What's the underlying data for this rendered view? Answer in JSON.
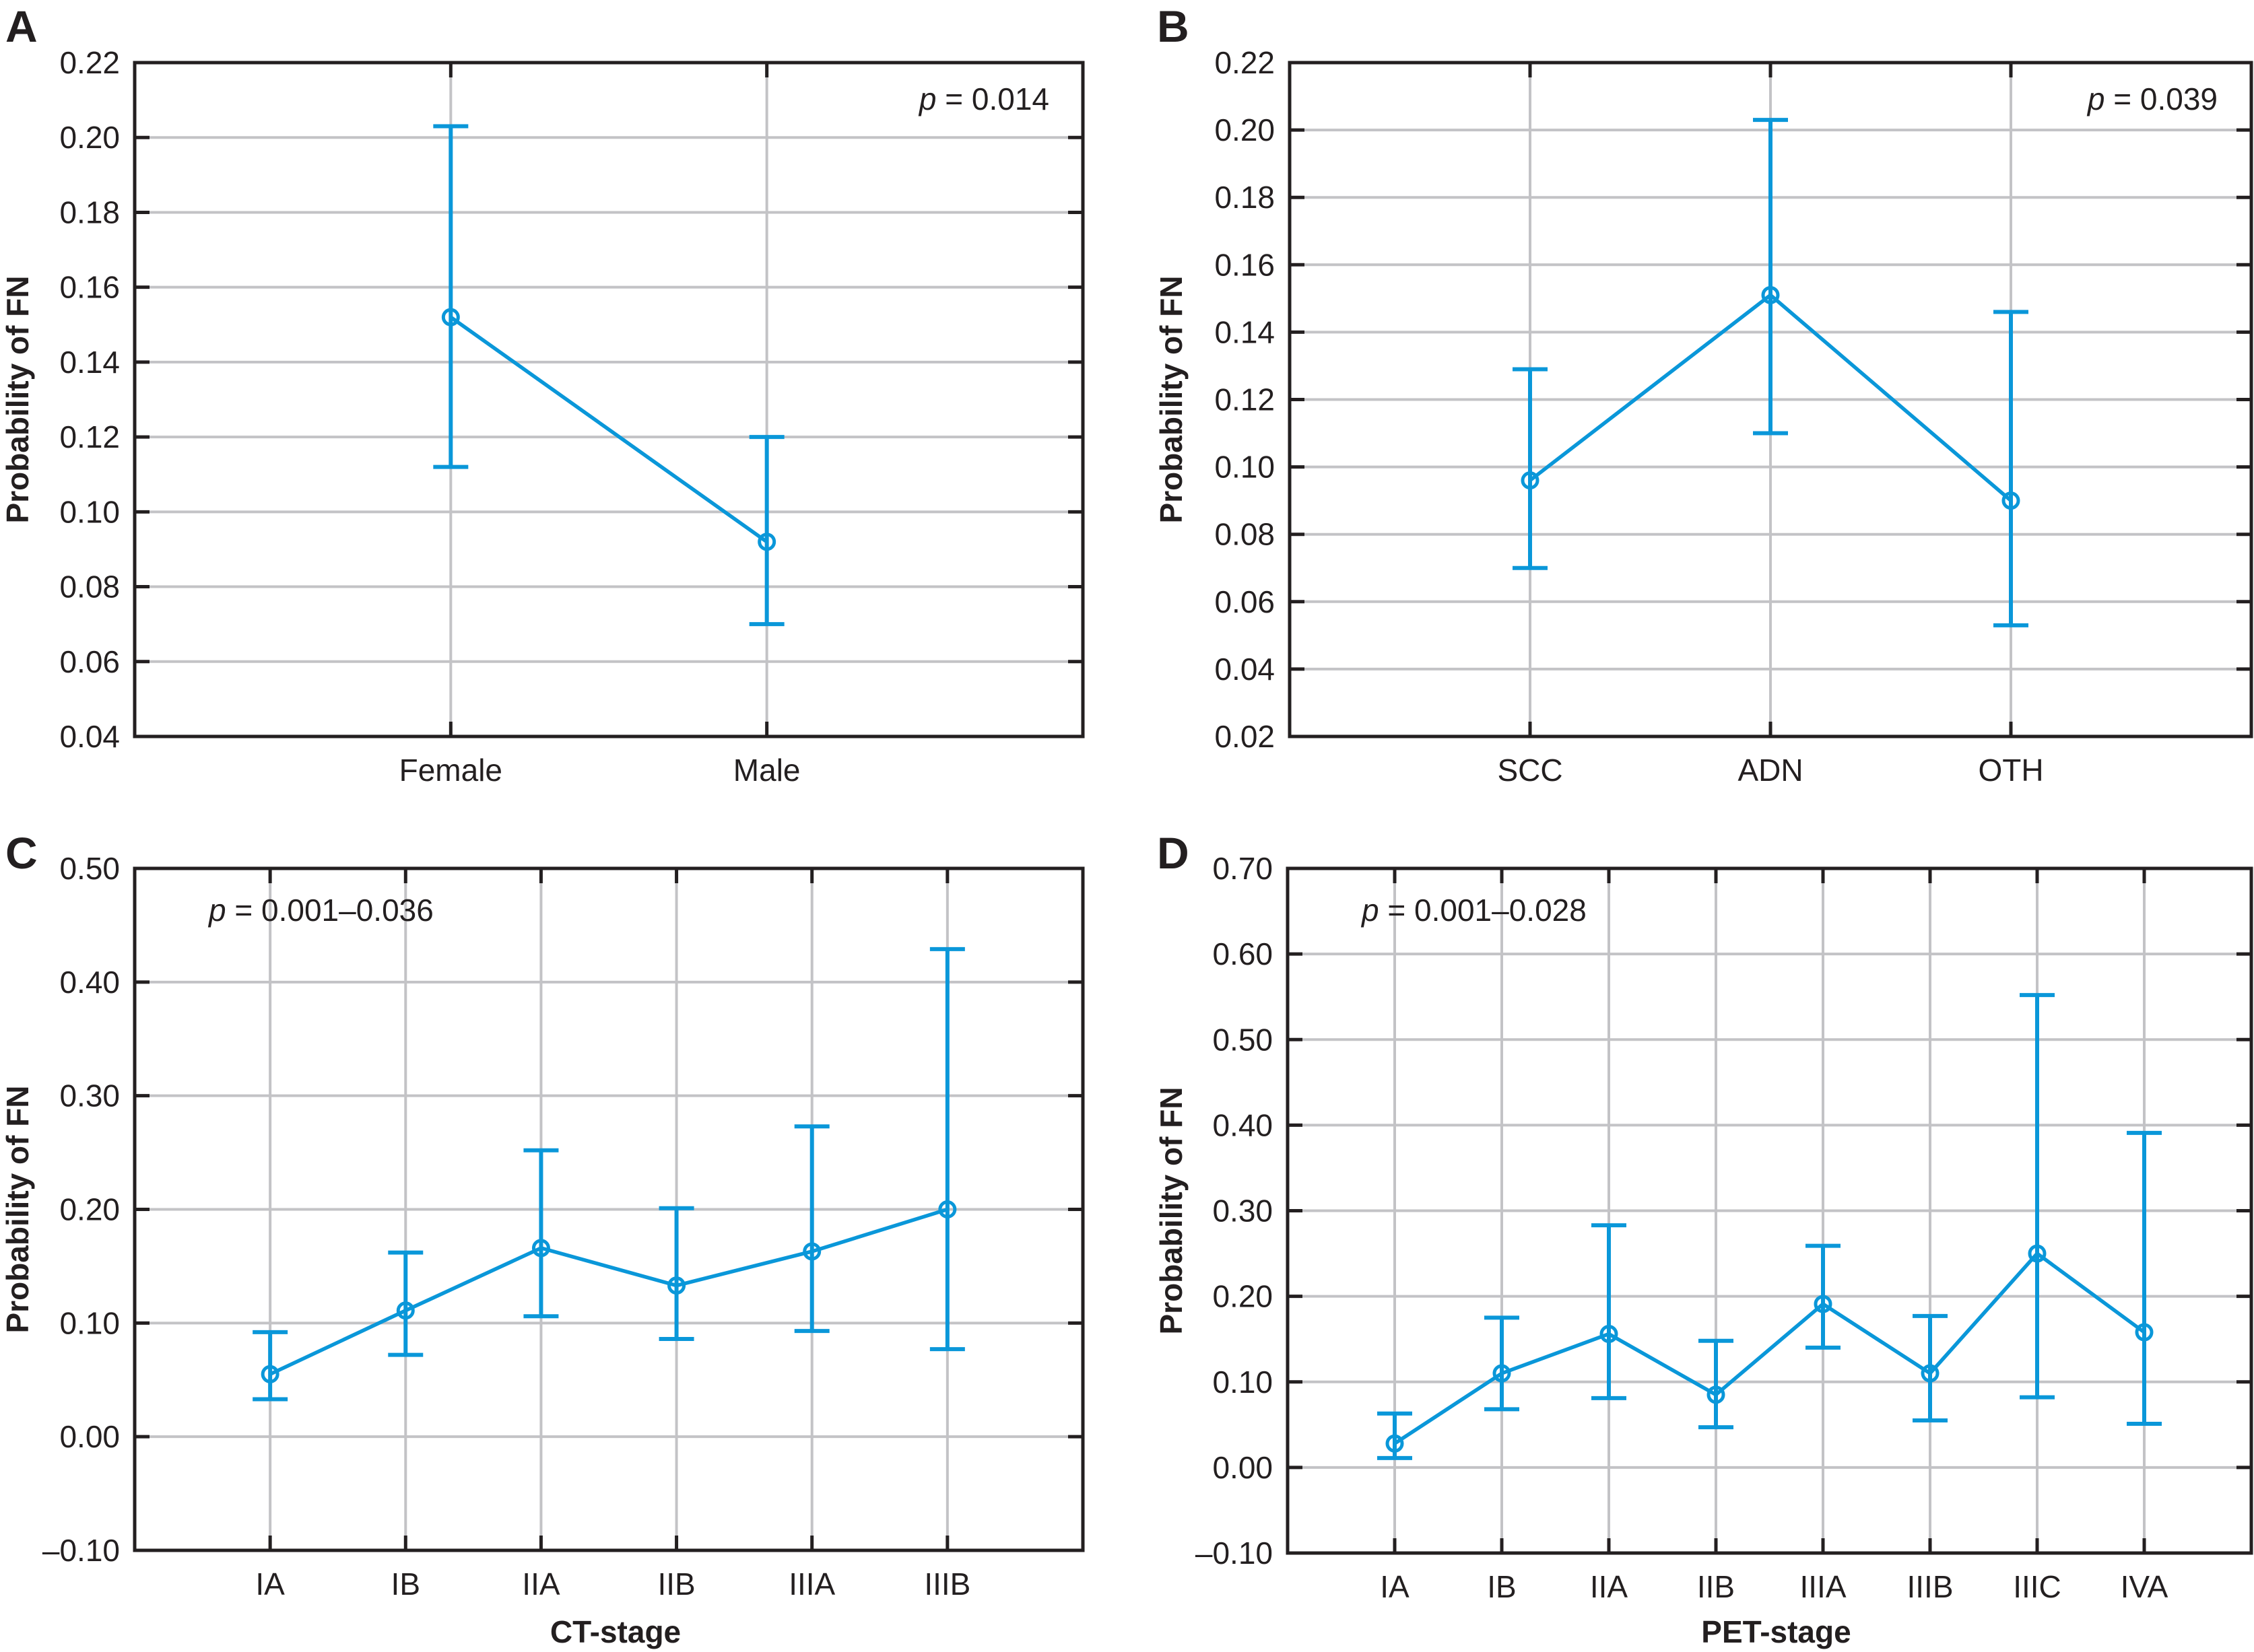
{
  "figure": {
    "series_color": "#0a97d9",
    "grid_color": "#c3c3c6",
    "axis_color": "#231f20"
  },
  "chart_data": [
    {
      "panel": "A",
      "type": "line",
      "title": "",
      "annotation": {
        "italic": "p",
        "text": " = 0.014"
      },
      "xlabel": "",
      "ylabel": "Probability of FN",
      "ylim": [
        0.04,
        0.22
      ],
      "yticks": [
        0.04,
        0.06,
        0.08,
        0.1,
        0.12,
        0.14,
        0.16,
        0.18,
        0.2,
        0.22
      ],
      "ytick_labels": [
        "0.04",
        "0.06",
        "0.08",
        "0.10",
        "0.12",
        "0.14",
        "0.16",
        "0.18",
        "0.20",
        "0.22"
      ],
      "grid": true,
      "annotation_position": "top-right",
      "categories": [
        "Female",
        "Male"
      ],
      "values": [
        0.152,
        0.092
      ],
      "ci_low": [
        0.112,
        0.07
      ],
      "ci_high": [
        0.203,
        0.12
      ]
    },
    {
      "panel": "B",
      "type": "line",
      "title": "",
      "annotation": {
        "italic": "p",
        "text": " = 0.039"
      },
      "xlabel": "",
      "ylabel": "Probability of FN",
      "ylim": [
        0.02,
        0.22
      ],
      "yticks": [
        0.02,
        0.04,
        0.06,
        0.08,
        0.1,
        0.12,
        0.14,
        0.16,
        0.18,
        0.2,
        0.22
      ],
      "ytick_labels": [
        "0.02",
        "0.04",
        "0.06",
        "0.08",
        "0.10",
        "0.12",
        "0.14",
        "0.16",
        "0.18",
        "0.20",
        "0.22"
      ],
      "grid": true,
      "annotation_position": "top-right",
      "categories": [
        "SCC",
        "ADN",
        "OTH"
      ],
      "values": [
        0.096,
        0.151,
        0.09
      ],
      "ci_low": [
        0.07,
        0.11,
        0.053
      ],
      "ci_high": [
        0.129,
        0.203,
        0.146
      ]
    },
    {
      "panel": "C",
      "type": "line",
      "title": "",
      "annotation": {
        "italic": "p",
        "text": " = 0.001–0.036"
      },
      "xlabel": "CT-stage",
      "ylabel": "Probability of FN",
      "ylim": [
        -0.1,
        0.5
      ],
      "yticks": [
        -0.1,
        0.0,
        0.1,
        0.2,
        0.3,
        0.4,
        0.5
      ],
      "ytick_labels": [
        "–0.10",
        "0.00",
        "0.10",
        "0.20",
        "0.30",
        "0.40",
        "0.50"
      ],
      "grid": true,
      "annotation_position": "top-left",
      "categories": [
        "IA",
        "IB",
        "IIA",
        "IIB",
        "IIIA",
        "IIIB"
      ],
      "values": [
        0.055,
        0.111,
        0.166,
        0.133,
        0.163,
        0.2
      ],
      "ci_low": [
        0.033,
        0.072,
        0.106,
        0.086,
        0.093,
        0.077
      ],
      "ci_high": [
        0.092,
        0.162,
        0.252,
        0.201,
        0.273,
        0.429
      ]
    },
    {
      "panel": "D",
      "type": "line",
      "title": "",
      "annotation": {
        "italic": "p",
        "text": " = 0.001–0.028"
      },
      "xlabel": "PET-stage",
      "ylabel": "Probability of FN",
      "ylim": [
        -0.1,
        0.7
      ],
      "yticks": [
        -0.1,
        0.0,
        0.1,
        0.2,
        0.3,
        0.4,
        0.5,
        0.6,
        0.7
      ],
      "ytick_labels": [
        "–0.10",
        "0.00",
        "0.10",
        "0.20",
        "0.30",
        "0.40",
        "0.50",
        "0.60",
        "0.70"
      ],
      "grid": true,
      "annotation_position": "top-left",
      "categories": [
        "IA",
        "IB",
        "IIA",
        "IIB",
        "IIIA",
        "IIIB",
        "IIIC",
        "IVA"
      ],
      "values": [
        0.028,
        0.11,
        0.156,
        0.085,
        0.191,
        0.11,
        0.25,
        0.158
      ],
      "ci_low": [
        0.011,
        0.068,
        0.081,
        0.047,
        0.14,
        0.055,
        0.082,
        0.051
      ],
      "ci_high": [
        0.063,
        0.175,
        0.283,
        0.148,
        0.259,
        0.177,
        0.552,
        0.391
      ]
    }
  ]
}
